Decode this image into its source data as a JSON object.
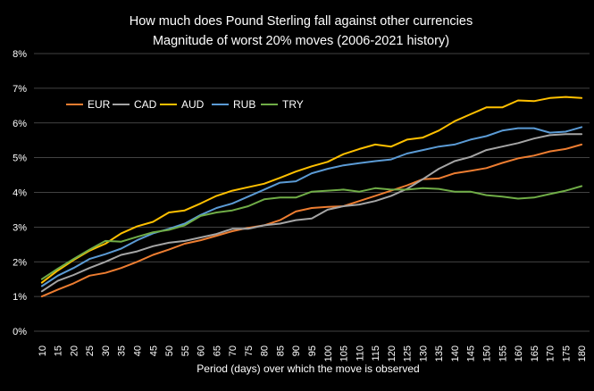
{
  "chart_data": {
    "type": "line",
    "title": "How much does Pound Sterling fall against other currencies",
    "subtitle": "Magnitude of worst 20% moves (2006-2021 history)",
    "xlabel": "Period (days) over which the move is observed",
    "ylabel": "",
    "ylim": [
      0,
      8
    ],
    "yticks": [
      "0%",
      "1%",
      "2%",
      "3%",
      "4%",
      "5%",
      "6%",
      "7%",
      "8%"
    ],
    "grid": true,
    "legend_position": "top-left",
    "categories": [
      10,
      15,
      20,
      25,
      30,
      35,
      40,
      45,
      50,
      55,
      60,
      65,
      70,
      75,
      80,
      85,
      90,
      95,
      100,
      105,
      110,
      115,
      120,
      125,
      130,
      135,
      140,
      145,
      150,
      155,
      160,
      165,
      170,
      175,
      180
    ],
    "series": [
      {
        "name": "EUR",
        "color": "#ed7d31",
        "values": [
          1.0,
          1.2,
          1.38,
          1.6,
          1.68,
          1.82,
          2.0,
          2.2,
          2.35,
          2.52,
          2.62,
          2.75,
          2.88,
          2.98,
          3.05,
          3.2,
          3.45,
          3.55,
          3.58,
          3.6,
          3.75,
          3.9,
          4.05,
          4.2,
          4.38,
          4.4,
          4.55,
          4.62,
          4.7,
          4.85,
          4.98,
          5.06,
          5.18,
          5.25,
          5.38
        ]
      },
      {
        "name": "CAD",
        "color": "#a5a5a5",
        "values": [
          1.15,
          1.45,
          1.62,
          1.82,
          2.0,
          2.2,
          2.3,
          2.45,
          2.55,
          2.6,
          2.7,
          2.8,
          2.95,
          2.95,
          3.05,
          3.1,
          3.2,
          3.25,
          3.5,
          3.6,
          3.65,
          3.75,
          3.9,
          4.1,
          4.38,
          4.68,
          4.9,
          5.02,
          5.22,
          5.32,
          5.42,
          5.55,
          5.65,
          5.68,
          5.68
        ]
      },
      {
        "name": "AUD",
        "color": "#ffc000",
        "values": [
          1.4,
          1.75,
          2.05,
          2.32,
          2.52,
          2.82,
          3.02,
          3.15,
          3.42,
          3.48,
          3.68,
          3.9,
          4.05,
          4.15,
          4.25,
          4.42,
          4.6,
          4.75,
          4.88,
          5.1,
          5.25,
          5.38,
          5.32,
          5.52,
          5.58,
          5.78,
          6.05,
          6.25,
          6.45,
          6.45,
          6.65,
          6.63,
          6.72,
          6.75,
          6.72
        ]
      },
      {
        "name": "RUB",
        "color": "#5b9bd5",
        "values": [
          1.3,
          1.6,
          1.82,
          2.08,
          2.22,
          2.38,
          2.62,
          2.82,
          2.95,
          3.1,
          3.35,
          3.55,
          3.68,
          3.88,
          4.08,
          4.28,
          4.32,
          4.55,
          4.68,
          4.78,
          4.84,
          4.9,
          4.95,
          5.12,
          5.22,
          5.32,
          5.38,
          5.52,
          5.62,
          5.78,
          5.85,
          5.85,
          5.72,
          5.75,
          5.88
        ]
      },
      {
        "name": "TRY",
        "color": "#70ad47",
        "values": [
          1.5,
          1.8,
          2.08,
          2.35,
          2.6,
          2.58,
          2.72,
          2.85,
          2.92,
          3.05,
          3.32,
          3.42,
          3.48,
          3.6,
          3.8,
          3.85,
          3.85,
          4.02,
          4.05,
          4.08,
          4.02,
          4.12,
          4.08,
          4.08,
          4.12,
          4.1,
          4.02,
          4.02,
          3.92,
          3.88,
          3.82,
          3.85,
          3.95,
          4.05,
          4.18
        ]
      }
    ]
  }
}
